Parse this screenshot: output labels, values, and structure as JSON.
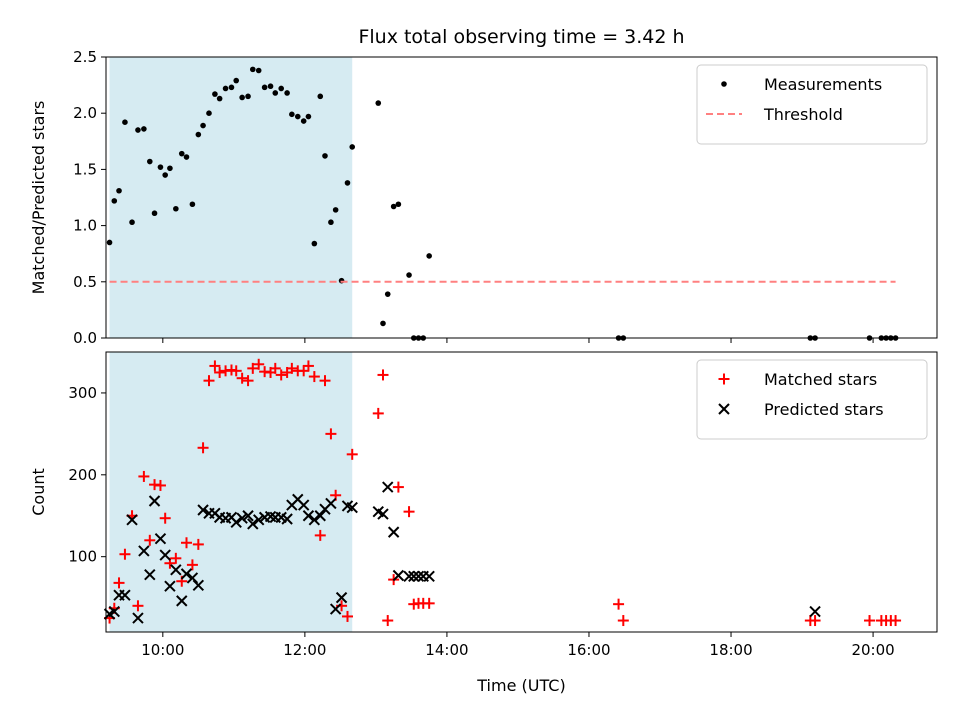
{
  "chart_data": [
    {
      "type": "scatter",
      "title": "Flux total observing time = 3.42 h",
      "xlabel": "",
      "ylabel": "Matched/Predicted stars",
      "xlim": [
        "09:12",
        "20:54"
      ],
      "ylim": [
        0,
        2.5
      ],
      "yticks": [
        0.0,
        0.5,
        1.0,
        1.5,
        2.0,
        2.5
      ],
      "yticklabels": [
        "0.0",
        "0.5",
        "1.0",
        "1.5",
        "2.0",
        "2.5"
      ],
      "xticks": [
        "10:00",
        "12:00",
        "14:00",
        "16:00",
        "18:00",
        "20:00"
      ],
      "xticklabels": [],
      "shaded_span": [
        "09:15",
        "12:40"
      ],
      "shaded_color": "#add8e6",
      "legend_position": "upper right",
      "series": [
        {
          "name": "Measurements",
          "marker": "dot",
          "color": "#000000",
          "x": [
            "09:15",
            "09:19",
            "09:23",
            "09:28",
            "09:34",
            "09:39",
            "09:44",
            "09:49",
            "09:53",
            "09:58",
            "10:02",
            "10:06",
            "10:11",
            "10:16",
            "10:20",
            "10:25",
            "10:30",
            "10:34",
            "10:39",
            "10:44",
            "10:48",
            "10:53",
            "10:58",
            "11:02",
            "11:07",
            "11:12",
            "11:16",
            "11:21",
            "11:26",
            "11:31",
            "11:35",
            "11:40",
            "11:45",
            "11:49",
            "11:54",
            "11:59",
            "12:03",
            "12:08",
            "12:13",
            "12:17",
            "12:22",
            "12:26",
            "12:31",
            "12:36",
            "12:40",
            "13:02",
            "13:06",
            "13:10",
            "13:15",
            "13:19",
            "13:28",
            "13:32",
            "13:36",
            "13:40",
            "13:45",
            "16:25",
            "16:29",
            "19:07",
            "19:11",
            "19:57",
            "20:07",
            "20:11",
            "20:15",
            "20:19"
          ],
          "y": [
            0.85,
            1.22,
            1.31,
            1.92,
            1.03,
            1.85,
            1.86,
            1.57,
            1.11,
            1.52,
            1.45,
            1.51,
            1.15,
            1.64,
            1.61,
            1.19,
            1.81,
            1.89,
            2.0,
            2.17,
            2.13,
            2.22,
            2.23,
            2.29,
            2.14,
            2.15,
            2.39,
            2.38,
            2.23,
            2.24,
            2.18,
            2.22,
            2.18,
            1.99,
            1.97,
            1.93,
            1.97,
            0.84,
            2.15,
            1.62,
            1.03,
            1.14,
            0.51,
            1.38,
            1.7,
            2.09,
            0.13,
            0.39,
            1.17,
            1.19,
            0.56,
            0.0,
            0.0,
            0.0,
            0.73,
            0.0,
            0.0,
            0.0,
            0.0,
            0.0,
            0.0,
            0.0,
            0.0,
            0.0
          ]
        },
        {
          "name": "Threshold",
          "marker": "dashed-line",
          "color": "#ff8080",
          "x": [
            "09:15",
            "20:19"
          ],
          "y": [
            0.5,
            0.5
          ]
        }
      ]
    },
    {
      "type": "scatter",
      "title": "",
      "xlabel": "Time (UTC)",
      "ylabel": "Count",
      "xlim": [
        "09:12",
        "20:54"
      ],
      "ylim": [
        8,
        350
      ],
      "yticks": [
        100,
        200,
        300
      ],
      "yticklabels": [
        "100",
        "200",
        "300"
      ],
      "xticks": [
        "10:00",
        "12:00",
        "14:00",
        "16:00",
        "18:00",
        "20:00"
      ],
      "xticklabels": [
        "10:00",
        "12:00",
        "14:00",
        "16:00",
        "18:00",
        "20:00"
      ],
      "shaded_span": [
        "09:15",
        "12:40"
      ],
      "shaded_color": "#add8e6",
      "legend_position": "upper right",
      "series": [
        {
          "name": "Matched stars",
          "marker": "plus",
          "color": "#ff0000",
          "x": [
            "09:15",
            "09:19",
            "09:23",
            "09:28",
            "09:34",
            "09:39",
            "09:44",
            "09:49",
            "09:53",
            "09:58",
            "10:02",
            "10:06",
            "10:11",
            "10:16",
            "10:20",
            "10:25",
            "10:30",
            "10:34",
            "10:39",
            "10:44",
            "10:48",
            "10:53",
            "10:58",
            "11:02",
            "11:07",
            "11:12",
            "11:16",
            "11:21",
            "11:26",
            "11:31",
            "11:35",
            "11:40",
            "11:45",
            "11:49",
            "11:54",
            "11:59",
            "12:03",
            "12:08",
            "12:13",
            "12:17",
            "12:22",
            "12:26",
            "12:31",
            "12:36",
            "12:40",
            "13:02",
            "13:06",
            "13:10",
            "13:15",
            "13:19",
            "13:28",
            "13:32",
            "13:36",
            "13:40",
            "13:45",
            "16:25",
            "16:29",
            "19:07",
            "19:11",
            "19:57",
            "20:07",
            "20:11",
            "20:15",
            "20:19"
          ],
          "y": [
            25,
            37,
            68,
            103,
            150,
            40,
            198,
            120,
            188,
            187,
            147,
            92,
            98,
            70,
            117,
            90,
            115,
            233,
            315,
            333,
            325,
            327,
            328,
            327,
            318,
            315,
            330,
            335,
            326,
            325,
            330,
            322,
            325,
            330,
            327,
            327,
            333,
            320,
            126,
            315,
            250,
            175,
            40,
            27,
            225,
            275,
            322,
            22,
            72,
            185,
            155,
            42,
            43,
            43,
            43,
            42,
            22,
            22,
            22,
            22,
            22,
            22,
            22,
            22
          ]
        },
        {
          "name": "Predicted stars",
          "marker": "x",
          "color": "#000000",
          "x": [
            "09:15",
            "09:19",
            "09:23",
            "09:28",
            "09:34",
            "09:39",
            "09:44",
            "09:49",
            "09:53",
            "09:58",
            "10:02",
            "10:06",
            "10:11",
            "10:16",
            "10:20",
            "10:25",
            "10:30",
            "10:34",
            "10:39",
            "10:44",
            "10:48",
            "10:53",
            "10:58",
            "11:02",
            "11:07",
            "11:12",
            "11:16",
            "11:21",
            "11:26",
            "11:31",
            "11:35",
            "11:40",
            "11:45",
            "11:49",
            "11:54",
            "11:59",
            "12:03",
            "12:08",
            "12:13",
            "12:17",
            "12:22",
            "12:26",
            "12:31",
            "12:36",
            "12:40",
            "13:02",
            "13:06",
            "13:10",
            "13:15",
            "13:19",
            "13:28",
            "13:32",
            "13:36",
            "13:40",
            "13:45",
            "19:11"
          ],
          "y": [
            30,
            33,
            53,
            53,
            145,
            25,
            107,
            78,
            168,
            122,
            102,
            64,
            84,
            46,
            79,
            74,
            65,
            157,
            153,
            153,
            148,
            147,
            148,
            142,
            147,
            150,
            140,
            145,
            148,
            149,
            148,
            148,
            146,
            163,
            170,
            163,
            150,
            145,
            150,
            158,
            165,
            36,
            50,
            162,
            160,
            155,
            152,
            185,
            130,
            77,
            76,
            76,
            76,
            76,
            76,
            33
          ]
        }
      ]
    }
  ]
}
